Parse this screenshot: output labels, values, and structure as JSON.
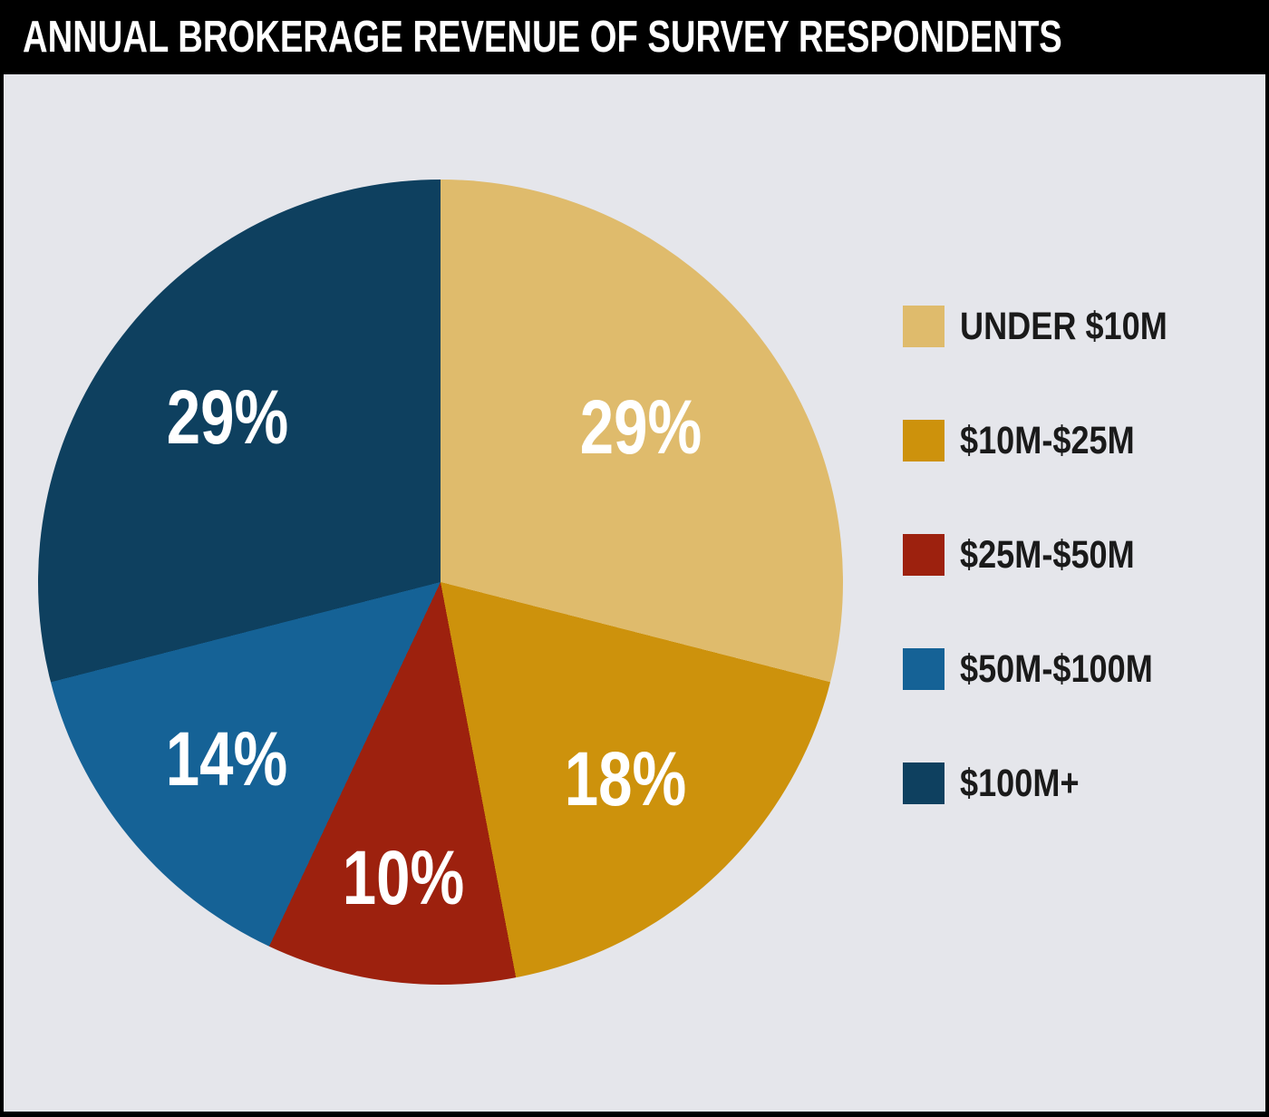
{
  "header": {
    "title": "ANNUAL BROKERAGE REVENUE OF SURVEY RESPONDENTS"
  },
  "colors": {
    "frame": "#000000",
    "panel_background": "#E5E6EB",
    "title_text": "#FFFFFF",
    "slice_label_text": "#FFFFFF",
    "legend_text": "#1A1A1A"
  },
  "chart_data": {
    "type": "pie",
    "title": "ANNUAL BROKERAGE REVENUE OF SURVEY RESPONDENTS",
    "categories": [
      "UNDER $10M",
      "$10M-$25M",
      "$25M-$50M",
      "$50M-$100M",
      "$100M+"
    ],
    "values": [
      29,
      18,
      10,
      14,
      29
    ],
    "slice_labels": [
      "29%",
      "18%",
      "10%",
      "14%",
      "29%"
    ],
    "slice_colors": [
      "#DFBB6C",
      "#CD920C",
      "#9D210E",
      "#156296",
      "#0E405F"
    ],
    "start_angle_deg": 0,
    "direction": "clockwise",
    "legend_position": "right",
    "label_radius_fraction": [
      0.63,
      0.67,
      0.74,
      0.69,
      0.67
    ]
  }
}
